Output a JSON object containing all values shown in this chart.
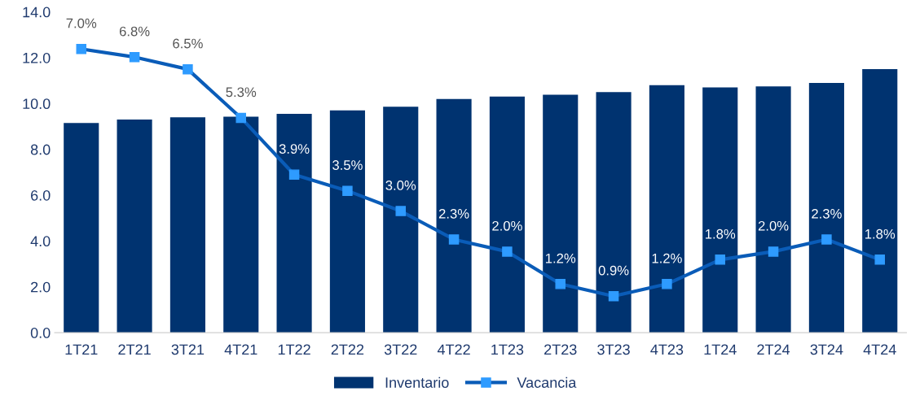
{
  "chart_data": {
    "type": "bar",
    "categories": [
      "1T21",
      "2T21",
      "3T21",
      "4T21",
      "1T22",
      "2T22",
      "3T22",
      "4T22",
      "1T23",
      "2T23",
      "3T23",
      "4T23",
      "1T24",
      "2T24",
      "3T24",
      "4T24"
    ],
    "series": [
      {
        "name": "Inventario",
        "color": "#003370",
        "values": [
          9.15,
          9.3,
          9.4,
          9.43,
          9.55,
          9.7,
          9.86,
          10.2,
          10.3,
          10.38,
          10.5,
          10.8,
          10.7,
          10.75,
          10.9,
          11.5
        ]
      },
      {
        "name": "Vacancia",
        "type": "line",
        "axis": "y2",
        "color": "#0a5cb8",
        "marker": "square",
        "values": [
          7.0,
          6.8,
          6.5,
          5.3,
          3.9,
          3.5,
          3.0,
          2.3,
          2.0,
          1.2,
          0.9,
          1.2,
          1.8,
          2.0,
          2.3,
          1.8
        ],
        "value_labels": [
          "7.0%",
          "6.8%",
          "6.5%",
          "5.3%",
          "3.9%",
          "3.5%",
          "3.0%",
          "2.3%",
          "2.0%",
          "1.2%",
          "0.9%",
          "1.2%",
          "1.8%",
          "2.0%",
          "2.3%",
          "1.8%"
        ]
      }
    ],
    "ylim": [
      0,
      14
    ],
    "yticks": [
      {
        "value": 0,
        "label": "0.0"
      },
      {
        "value": 2,
        "label": "2.0"
      },
      {
        "value": 4,
        "label": "4.0"
      },
      {
        "value": 6,
        "label": "6.0"
      },
      {
        "value": 8,
        "label": "8.0"
      },
      {
        "value": 10,
        "label": "10.0"
      },
      {
        "value": 12,
        "label": "12.0"
      },
      {
        "value": 14,
        "label": "14.0"
      }
    ],
    "grid": false,
    "legend": "bottom"
  }
}
